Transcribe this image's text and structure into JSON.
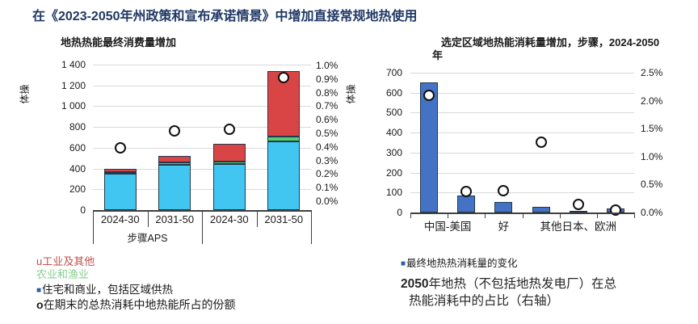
{
  "page_title": "在《2023-2050年州政策和宣布承诺情景》中增加直接常规地热使用",
  "colors": {
    "title": "#1f3864",
    "residential": "#41c6f2",
    "agriculture": "#57ce6b",
    "industry": "#d94545",
    "right_bar": "#4472c4",
    "bar_border": "#21374d",
    "marker_fill": "#ffffff",
    "marker_border": "#111111",
    "gridline": "#d9d9d9",
    "axis": "#404040",
    "legend_industry_text": "#c0504d",
    "legend_agriculture_text": "#87ce8c",
    "legend_square_blue": "#2e5fa0"
  },
  "chart_data": [
    {
      "type": "bar",
      "variant": "stacked-bars-with-share-markers",
      "title": "地热热能最终消费量增加",
      "y_axis_label": "体操",
      "categories": [
        "2024-30",
        "2031-50",
        "2024-30",
        "2031-50"
      ],
      "group_labels": [
        "步骤APS",
        ""
      ],
      "series": [
        {
          "name": "住宅和商业，包括区域供热",
          "color_key": "residential",
          "values": [
            350,
            435,
            445,
            660
          ]
        },
        {
          "name": "农业和渔业",
          "color_key": "agriculture",
          "values": [
            15,
            25,
            20,
            50
          ]
        },
        {
          "name": "工业及其他",
          "color_key": "industry",
          "values": [
            30,
            65,
            170,
            630
          ]
        }
      ],
      "bar_totals": [
        395,
        525,
        635,
        1340
      ],
      "markers": {
        "name": "在期末的总热消耗中地热能所占的份额",
        "axis": "right",
        "values_pct": [
          0.39,
          0.52,
          0.53,
          0.91
        ]
      },
      "ylim_left": [
        0,
        1400
      ],
      "yticks_left": [
        "0",
        "200",
        "400",
        "600",
        "800",
        "1 000",
        "1 200",
        "1 400"
      ],
      "ylim_right_pct": [
        0.0,
        1.0
      ],
      "yticks_right": [
        "1.0%",
        "0.9%",
        "0.8%",
        "0.7%",
        "0.6%",
        "0.5%",
        "0.4%",
        "0.3%",
        "0.2%",
        "0.1%",
        "0.0%"
      ],
      "grid": true,
      "legend_position": "bottom-left"
    },
    {
      "type": "bar",
      "variant": "bars-with-share-markers",
      "title_line1": "选定区域地热能消耗量增加，步骤，2024-2050",
      "title_line2": "年",
      "y_axis_label": "体操",
      "bar_series_name": "最终地热热消耗量的变化",
      "values": [
        650,
        85,
        52,
        28,
        8,
        22
      ],
      "markers": {
        "name": "2050年地热（不包括地热发电厂）在总热能消耗中的占比（右轴）",
        "axis": "right",
        "values_pct": [
          2.1,
          0.37,
          0.39,
          1.26,
          0.14,
          0.05
        ]
      },
      "x_labels_visible": [
        {
          "text": "中国-美国",
          "span": [
            0,
            1
          ]
        },
        {
          "text": "好",
          "span": [
            2,
            2
          ]
        },
        {
          "text": "其他日本、欧洲",
          "span": [
            3,
            5
          ]
        }
      ],
      "ylim_left": [
        0,
        700
      ],
      "yticks_left": [
        "0",
        "100",
        "200",
        "300",
        "400",
        "500",
        "600",
        "700"
      ],
      "ylim_right_pct": [
        0.0,
        2.5
      ],
      "yticks_right": [
        "2.5%",
        "2.0%",
        "1.5%",
        "1.0%",
        "0.5%",
        "0.0%"
      ],
      "grid": true
    }
  ],
  "left_legend": [
    {
      "bullet": "u",
      "text": "工业及其他"
    },
    {
      "bullet": "",
      "text": "农业和渔业"
    },
    {
      "bullet": "■",
      "text": "住宅和商业，包括区域供热"
    },
    {
      "bullet": "o",
      "text": "在期末的总热消耗中地热能所占的份额"
    }
  ],
  "right_legend": {
    "bullet": "■",
    "text": "最终地热热消耗量的变化"
  },
  "caption": {
    "line1_bold": "2050",
    "line1_rest": "年地热（不包括地热发电厂）在总",
    "line2": "热能消耗中的占比（右轴）"
  }
}
